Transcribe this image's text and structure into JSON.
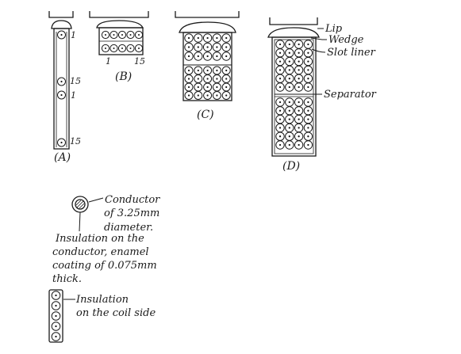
{
  "diagram": {
    "labels": {
      "a": "(A)",
      "b": "(B)",
      "c": "(C)",
      "d": "(D)",
      "lip": "Lip",
      "wedge": "Wedge",
      "slot_liner": "Slot liner",
      "separator": "Separator",
      "a_num_top_1": "1",
      "a_num_mid_15": "15",
      "a_num_mid_1": "1",
      "a_num_bot_15": "15",
      "b_num_1": "1",
      "b_num_15": "15",
      "conductor_line1": "Conductor",
      "conductor_line2": "of 3.25mm",
      "conductor_line3": "diameter.",
      "insulation_line1": "Insulation on the",
      "insulation_line2": "conductor, enamel",
      "insulation_line3": "coating of 0.075mm",
      "insulation_line4": "thick.",
      "coil_line1": "Insulation",
      "coil_line2": "on the coil side"
    }
  }
}
